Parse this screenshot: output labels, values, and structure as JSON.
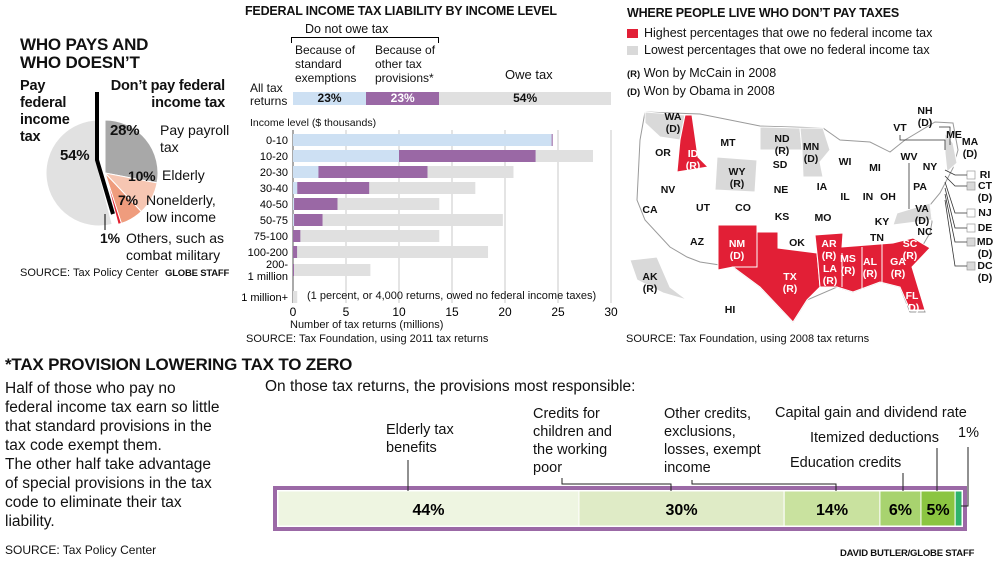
{
  "pie": {
    "title": "WHO PAYS AND WHO DOESN’T",
    "left_heading": "Pay federal income tax",
    "right_heading": "Don’t pay federal income tax",
    "slices": [
      {
        "label": "Pay payroll tax",
        "value": 28,
        "pct": "28%",
        "color": "#a8a8a8"
      },
      {
        "label": "Elderly",
        "value": 10,
        "pct": "10%",
        "color": "#f6c6b2"
      },
      {
        "label": "Nonelderly, low income",
        "value": 7,
        "pct": "7%",
        "color": "#ef9c7d"
      },
      {
        "label": "Others, such as combat military",
        "value": 1,
        "pct": "1%",
        "color": "#e21f2f"
      },
      {
        "label": "Pay federal income tax",
        "value": 54,
        "pct": "54%",
        "color": "#e1e1e1"
      }
    ],
    "source": "SOURCE: Tax Policy Center",
    "credit": "GLOBE STAFF"
  },
  "chart_data": [
    {
      "type": "bar",
      "title": "FEDERAL INCOME TAX LIABILITY BY INCOME LEVEL",
      "group_label": "Do not owe tax",
      "summary": {
        "label": "All tax returns",
        "series": [
          {
            "name": "Because of standard exemptions",
            "pct": "23%",
            "value": 23
          },
          {
            "name": "Because of other tax provisions*",
            "pct": "23%",
            "value": 23
          },
          {
            "name": "Owe tax",
            "pct": "54%",
            "value": 54
          }
        ]
      },
      "ylabel": "Income level ($ thousands)",
      "xlabel": "Number of tax returns (millions)",
      "xlim": [
        0,
        30
      ],
      "xticks": [
        "0",
        "5",
        "10",
        "15",
        "20",
        "25",
        "30"
      ],
      "categories": [
        "0-10",
        "10-20",
        "20-30",
        "30-40",
        "40-50",
        "50-75",
        "75-100",
        "100-200",
        "200-\n1 million",
        "1 million+"
      ],
      "series": [
        {
          "name": "Because of standard exemptions",
          "color": "#cde0f3",
          "values": [
            24.4,
            10,
            2.4,
            0.4,
            0.1,
            0.1,
            0,
            0,
            0,
            0
          ]
        },
        {
          "name": "Because of other tax provisions*",
          "color": "#9a68a5",
          "values": [
            0.1,
            12.9,
            10.3,
            6.8,
            4.1,
            2.7,
            0.7,
            0.4,
            0.1,
            0
          ]
        },
        {
          "name": "Owe tax",
          "color": "#e0e0e0",
          "values": [
            0,
            5.4,
            8.1,
            10,
            9.6,
            17,
            13.1,
            18,
            7.2,
            0.4
          ]
        }
      ],
      "note": "(1 percent, or 4,000 returns, owed no federal income taxes)",
      "source": "SOURCE: Tax Foundation, using 2011 tax returns"
    },
    {
      "type": "bar",
      "title": "*TAX PROVISION LOWERING TAX TO ZERO",
      "subtitle": "On those tax returns, the provisions most responsible:",
      "categories": [
        "Elderly tax benefits",
        "Credits for children and the working poor",
        "Other credits, exclusions, losses, exempt income",
        "Education credits",
        "Itemized deductions",
        "Capital gain and dividend rate"
      ],
      "values": [
        44,
        30,
        14,
        6,
        5,
        1
      ],
      "labels": [
        "44%",
        "30%",
        "14%",
        "6%",
        "5%",
        "1%"
      ],
      "colors": [
        "#eef5e1",
        "#dfebc6",
        "#c9e29f",
        "#a8d36f",
        "#8bc541",
        "#2fb36b"
      ]
    }
  ],
  "map": {
    "title": "WHERE PEOPLE LIVE WHO DON’T PAY TAXES",
    "legend": [
      {
        "label": "Highest percentages that owe no federal income tax",
        "color": "#e21f36"
      },
      {
        "label": "Lowest percentages that owe no federal income tax",
        "color": "#d9d9d9"
      }
    ],
    "party_legend": [
      {
        "key": "(R)",
        "label": "Won by McCain in 2008"
      },
      {
        "key": "(D)",
        "label": "Won by Obama in 2008"
      }
    ],
    "states": [
      {
        "abbr": "WA",
        "party": "(D)",
        "cat": "low"
      },
      {
        "abbr": "OR",
        "party": "",
        "cat": ""
      },
      {
        "abbr": "ID",
        "party": "(R)",
        "cat": "high"
      },
      {
        "abbr": "MT",
        "party": "",
        "cat": ""
      },
      {
        "abbr": "ND",
        "party": "(R)",
        "cat": "low"
      },
      {
        "abbr": "MN",
        "party": "(D)",
        "cat": "low"
      },
      {
        "abbr": "WI",
        "party": "",
        "cat": ""
      },
      {
        "abbr": "MI",
        "party": "",
        "cat": ""
      },
      {
        "abbr": "VT",
        "party": "",
        "cat": ""
      },
      {
        "abbr": "NH",
        "party": "(D)",
        "cat": "low"
      },
      {
        "abbr": "ME",
        "party": "",
        "cat": ""
      },
      {
        "abbr": "MA",
        "party": "(D)",
        "cat": "low"
      },
      {
        "abbr": "NY",
        "party": "",
        "cat": ""
      },
      {
        "abbr": "WY",
        "party": "(R)",
        "cat": "low"
      },
      {
        "abbr": "SD",
        "party": "",
        "cat": ""
      },
      {
        "abbr": "NV",
        "party": "",
        "cat": ""
      },
      {
        "abbr": "CA",
        "party": "",
        "cat": ""
      },
      {
        "abbr": "UT",
        "party": "",
        "cat": ""
      },
      {
        "abbr": "CO",
        "party": "",
        "cat": ""
      },
      {
        "abbr": "NE",
        "party": "",
        "cat": ""
      },
      {
        "abbr": "IA",
        "party": "",
        "cat": ""
      },
      {
        "abbr": "IL",
        "party": "",
        "cat": ""
      },
      {
        "abbr": "IN",
        "party": "",
        "cat": ""
      },
      {
        "abbr": "OH",
        "party": "",
        "cat": ""
      },
      {
        "abbr": "WV",
        "party": "",
        "cat": ""
      },
      {
        "abbr": "PA",
        "party": "",
        "cat": ""
      },
      {
        "abbr": "KS",
        "party": "",
        "cat": ""
      },
      {
        "abbr": "MO",
        "party": "",
        "cat": ""
      },
      {
        "abbr": "KY",
        "party": "",
        "cat": ""
      },
      {
        "abbr": "VA",
        "party": "(D)",
        "cat": "low"
      },
      {
        "abbr": "TN",
        "party": "",
        "cat": ""
      },
      {
        "abbr": "NC",
        "party": "",
        "cat": ""
      },
      {
        "abbr": "AZ",
        "party": "",
        "cat": ""
      },
      {
        "abbr": "OK",
        "party": "",
        "cat": ""
      },
      {
        "abbr": "NM",
        "party": "(D)",
        "cat": "high"
      },
      {
        "abbr": "AR",
        "party": "(R)",
        "cat": "high"
      },
      {
        "abbr": "SC",
        "party": "(R)",
        "cat": "high"
      },
      {
        "abbr": "MS",
        "party": "(R)",
        "cat": "high"
      },
      {
        "abbr": "AL",
        "party": "(R)",
        "cat": "high"
      },
      {
        "abbr": "GA",
        "party": "(R)",
        "cat": "high"
      },
      {
        "abbr": "LA",
        "party": "(R)",
        "cat": "high"
      },
      {
        "abbr": "TX",
        "party": "(R)",
        "cat": "high"
      },
      {
        "abbr": "FL",
        "party": "(D)",
        "cat": "high"
      },
      {
        "abbr": "AK",
        "party": "(R)",
        "cat": "low"
      },
      {
        "abbr": "HI",
        "party": "",
        "cat": ""
      },
      {
        "abbr": "RI",
        "party": "",
        "cat": ""
      },
      {
        "abbr": "CT",
        "party": "(D)",
        "cat": "low"
      },
      {
        "abbr": "NJ",
        "party": "",
        "cat": ""
      },
      {
        "abbr": "DE",
        "party": "",
        "cat": ""
      },
      {
        "abbr": "MD",
        "party": "(D)",
        "cat": "low"
      },
      {
        "abbr": "DC",
        "party": "(D)",
        "cat": "low"
      }
    ],
    "source": "SOURCE: Tax Foundation, using 2008 tax returns"
  },
  "footnote": {
    "body": [
      "Half of those who pay no",
      "federal income tax earn so little",
      "that standard provisions in the",
      "tax code exempt them.",
      "The other half take advantage",
      "of special provisions in the tax",
      "code to eliminate their tax",
      "liability."
    ],
    "source": "SOURCE: Tax Policy Center",
    "credit": "DAVID BUTLER/GLOBE STAFF"
  }
}
